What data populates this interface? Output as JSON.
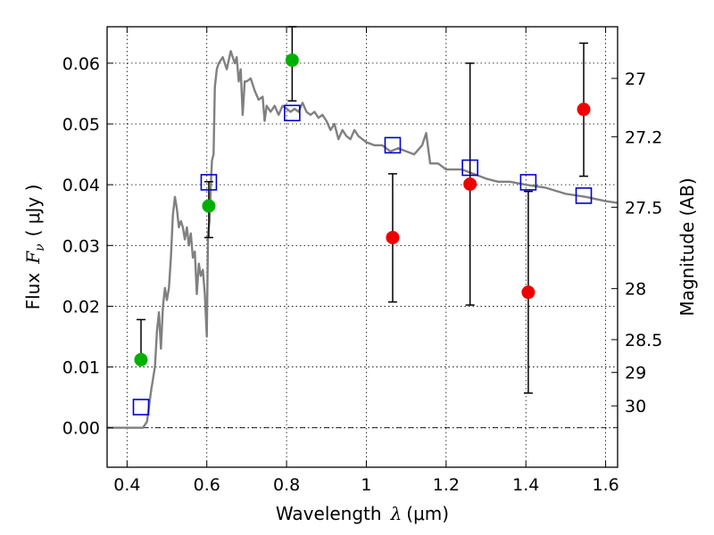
{
  "chart_data": {
    "type": "scatter",
    "xlabel": {
      "prefix": "Wavelength",
      "symbol": "λ",
      "unit": "(μm)"
    },
    "ylabel": {
      "prefix": "Flux",
      "symbol": "F",
      "subscript": "ν",
      "unit": "( μJy )"
    },
    "y2label": "Magnitude (AB)",
    "xlim": [
      0.35,
      1.63
    ],
    "ylim": [
      -0.0065,
      0.066
    ],
    "x_ticks": [
      0.4,
      0.6,
      0.8,
      1.0,
      1.2,
      1.4,
      1.6
    ],
    "x_tick_labels": [
      "0.4",
      "0.6",
      "0.8",
      "1",
      "1.2",
      "1.4",
      "1.6"
    ],
    "y_ticks": [
      0.0,
      0.01,
      0.02,
      0.03,
      0.04,
      0.05,
      0.06
    ],
    "y_tick_labels": [
      "0.00",
      "0.01",
      "0.02",
      "0.03",
      "0.04",
      "0.05",
      "0.06"
    ],
    "y2_ticks": [
      {
        "label": "27",
        "flux": 0.0575
      },
      {
        "label": "27.2",
        "flux": 0.0479
      },
      {
        "label": "27.5",
        "flux": 0.0363
      },
      {
        "label": "28",
        "flux": 0.0229
      },
      {
        "label": "28.5",
        "flux": 0.0145
      },
      {
        "label": "29",
        "flux": 0.0091
      },
      {
        "label": "30",
        "flux": 0.0036
      }
    ],
    "grid": true,
    "colors": {
      "model": "#808080",
      "green": "#00b000",
      "red": "#ee0000",
      "square": "#0000cc",
      "error": "#000000"
    },
    "model_spectrum": [
      [
        0.35,
        0.0
      ],
      [
        0.44,
        0.0
      ],
      [
        0.45,
        0.001
      ],
      [
        0.46,
        0.006
      ],
      [
        0.47,
        0.01
      ],
      [
        0.475,
        0.016
      ],
      [
        0.48,
        0.019
      ],
      [
        0.485,
        0.013
      ],
      [
        0.49,
        0.02
      ],
      [
        0.495,
        0.023
      ],
      [
        0.5,
        0.021
      ],
      [
        0.505,
        0.023
      ],
      [
        0.51,
        0.028
      ],
      [
        0.515,
        0.035
      ],
      [
        0.52,
        0.038
      ],
      [
        0.525,
        0.036
      ],
      [
        0.53,
        0.033
      ],
      [
        0.535,
        0.034
      ],
      [
        0.54,
        0.033
      ],
      [
        0.545,
        0.031
      ],
      [
        0.55,
        0.033
      ],
      [
        0.555,
        0.03
      ],
      [
        0.56,
        0.032
      ],
      [
        0.565,
        0.028
      ],
      [
        0.57,
        0.029
      ],
      [
        0.575,
        0.022
      ],
      [
        0.58,
        0.027
      ],
      [
        0.585,
        0.025
      ],
      [
        0.59,
        0.026
      ],
      [
        0.595,
        0.022
      ],
      [
        0.6,
        0.015
      ],
      [
        0.603,
        0.032
      ],
      [
        0.607,
        0.034
      ],
      [
        0.61,
        0.04
      ],
      [
        0.613,
        0.044
      ],
      [
        0.617,
        0.045
      ],
      [
        0.62,
        0.056
      ],
      [
        0.625,
        0.059
      ],
      [
        0.63,
        0.06
      ],
      [
        0.64,
        0.061
      ],
      [
        0.65,
        0.059
      ],
      [
        0.66,
        0.062
      ],
      [
        0.67,
        0.06
      ],
      [
        0.675,
        0.061
      ],
      [
        0.68,
        0.057
      ],
      [
        0.685,
        0.059
      ],
      [
        0.69,
        0.0515
      ],
      [
        0.695,
        0.057
      ],
      [
        0.7,
        0.057
      ],
      [
        0.71,
        0.0575
      ],
      [
        0.72,
        0.0555
      ],
      [
        0.73,
        0.054
      ],
      [
        0.74,
        0.0545
      ],
      [
        0.745,
        0.0505
      ],
      [
        0.75,
        0.053
      ],
      [
        0.76,
        0.052
      ],
      [
        0.77,
        0.053
      ],
      [
        0.78,
        0.0515
      ],
      [
        0.79,
        0.053
      ],
      [
        0.8,
        0.0525
      ],
      [
        0.81,
        0.052
      ],
      [
        0.82,
        0.0525
      ],
      [
        0.83,
        0.052
      ],
      [
        0.84,
        0.0535
      ],
      [
        0.85,
        0.052
      ],
      [
        0.86,
        0.0515
      ],
      [
        0.87,
        0.052
      ],
      [
        0.88,
        0.051
      ],
      [
        0.89,
        0.0515
      ],
      [
        0.9,
        0.0505
      ],
      [
        0.91,
        0.049
      ],
      [
        0.92,
        0.05
      ],
      [
        0.93,
        0.0475
      ],
      [
        0.94,
        0.049
      ],
      [
        0.95,
        0.048
      ],
      [
        0.96,
        0.0475
      ],
      [
        0.97,
        0.049
      ],
      [
        0.98,
        0.048
      ],
      [
        0.99,
        0.0475
      ],
      [
        1.0,
        0.047
      ],
      [
        1.02,
        0.0465
      ],
      [
        1.04,
        0.0465
      ],
      [
        1.06,
        0.0455
      ],
      [
        1.08,
        0.046
      ],
      [
        1.1,
        0.0455
      ],
      [
        1.12,
        0.045
      ],
      [
        1.14,
        0.0465
      ],
      [
        1.15,
        0.0485
      ],
      [
        1.16,
        0.0435
      ],
      [
        1.18,
        0.0435
      ],
      [
        1.2,
        0.0425
      ],
      [
        1.22,
        0.0425
      ],
      [
        1.24,
        0.0425
      ],
      [
        1.26,
        0.042
      ],
      [
        1.28,
        0.0415
      ],
      [
        1.3,
        0.041
      ],
      [
        1.33,
        0.0405
      ],
      [
        1.36,
        0.0405
      ],
      [
        1.4,
        0.04
      ],
      [
        1.45,
        0.0395
      ],
      [
        1.5,
        0.0385
      ],
      [
        1.55,
        0.038
      ],
      [
        1.6,
        0.0373
      ],
      [
        1.63,
        0.037
      ]
    ],
    "green_points": [
      {
        "x": 0.435,
        "y": 0.0112,
        "err_low": 0.0115,
        "err_high": 0.0178
      },
      {
        "x": 0.605,
        "y": 0.0365,
        "err_low": 0.0313,
        "err_high": 0.0405
      },
      {
        "x": 0.814,
        "y": 0.0605,
        "err_low": 0.0538,
        "err_high": 0.066
      }
    ],
    "red_points": [
      {
        "x": 1.066,
        "y": 0.0313,
        "err_low": 0.0207,
        "err_high": 0.0418
      },
      {
        "x": 1.26,
        "y": 0.0401,
        "err_low": 0.0202,
        "err_high": 0.06
      },
      {
        "x": 1.406,
        "y": 0.0223,
        "err_low": 0.0057,
        "err_high": 0.0389
      },
      {
        "x": 1.545,
        "y": 0.0524,
        "err_low": 0.0414,
        "err_high": 0.0633
      }
    ],
    "model_squares": [
      {
        "x": 0.435,
        "y": 0.0034
      },
      {
        "x": 0.605,
        "y": 0.0404
      },
      {
        "x": 0.814,
        "y": 0.0518
      },
      {
        "x": 1.066,
        "y": 0.0465
      },
      {
        "x": 1.26,
        "y": 0.0428
      },
      {
        "x": 1.406,
        "y": 0.0404
      },
      {
        "x": 1.545,
        "y": 0.0382
      }
    ]
  }
}
